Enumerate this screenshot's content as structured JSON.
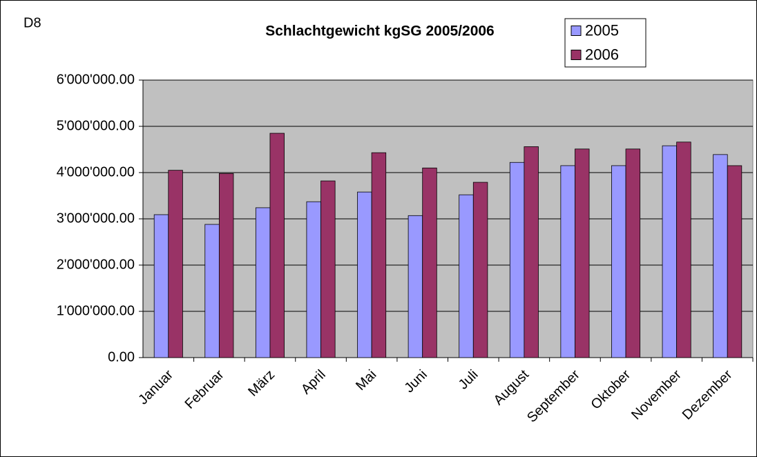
{
  "chart_data": {
    "type": "bar",
    "title": "Schlachtgewicht kgSG 2005/2006",
    "annotation": "D8",
    "categories": [
      "Januar",
      "Februar",
      "März",
      "April",
      "Mai",
      "Juni",
      "Juli",
      "August",
      "September",
      "Oktober",
      "November",
      "Dezember"
    ],
    "series": [
      {
        "name": "2005",
        "color": "#9999ff",
        "values": [
          3090000,
          2880000,
          3240000,
          3370000,
          3580000,
          3070000,
          3520000,
          4220000,
          4150000,
          4150000,
          4580000,
          4390000
        ]
      },
      {
        "name": "2006",
        "color": "#993366",
        "values": [
          4050000,
          3980000,
          4850000,
          3820000,
          4430000,
          4100000,
          3790000,
          4560000,
          4510000,
          4510000,
          4660000,
          4150000
        ]
      }
    ],
    "ylim": [
      0,
      6000000
    ],
    "yticks": [
      {
        "value": 0,
        "label": "0.00"
      },
      {
        "value": 1000000,
        "label": "1'000'000.00"
      },
      {
        "value": 2000000,
        "label": "2'000'000.00"
      },
      {
        "value": 3000000,
        "label": "3'000'000.00"
      },
      {
        "value": 4000000,
        "label": "4'000'000.00"
      },
      {
        "value": 5000000,
        "label": "5'000'000.00"
      },
      {
        "value": 6000000,
        "label": "6'000'000.00"
      }
    ],
    "grid": true,
    "legend": "top-right",
    "plot_background": "#c0c0c0"
  }
}
